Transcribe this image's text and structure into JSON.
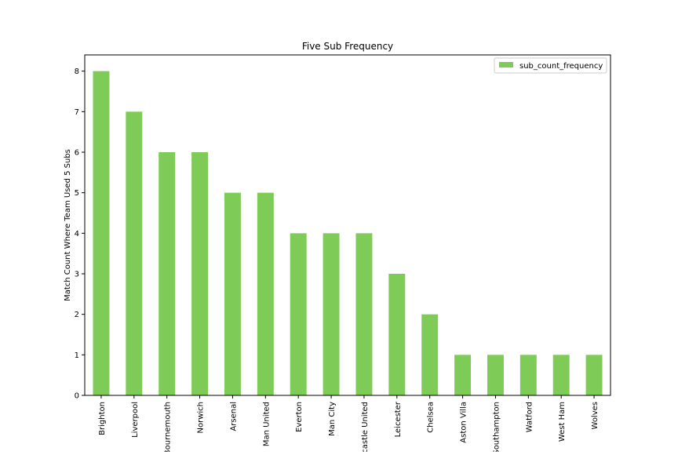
{
  "chart_data": {
    "type": "bar",
    "title": "Five Sub Frequency",
    "xlabel": "",
    "ylabel": "Match Count Where Team Used 5 Subs",
    "categories": [
      "Brighton",
      "Liverpool",
      "Bournemouth",
      "Norwich",
      "Arsenal",
      "Man United",
      "Everton",
      "Man City",
      "Newcastle United",
      "Leicester",
      "Chelsea",
      "Aston Villa",
      "Southampton",
      "Watford",
      "West Ham",
      "Wolves"
    ],
    "series": [
      {
        "name": "sub_count_frequency",
        "values": [
          8,
          7,
          6,
          6,
          5,
          5,
          4,
          4,
          4,
          3,
          2,
          1,
          1,
          1,
          1,
          1
        ],
        "color": "#7fcb57"
      }
    ],
    "yticks": [
      0,
      1,
      2,
      3,
      4,
      5,
      6,
      7,
      8
    ],
    "ylim": [
      0,
      8.4
    ],
    "grid": false,
    "legend_position": "top-right"
  }
}
